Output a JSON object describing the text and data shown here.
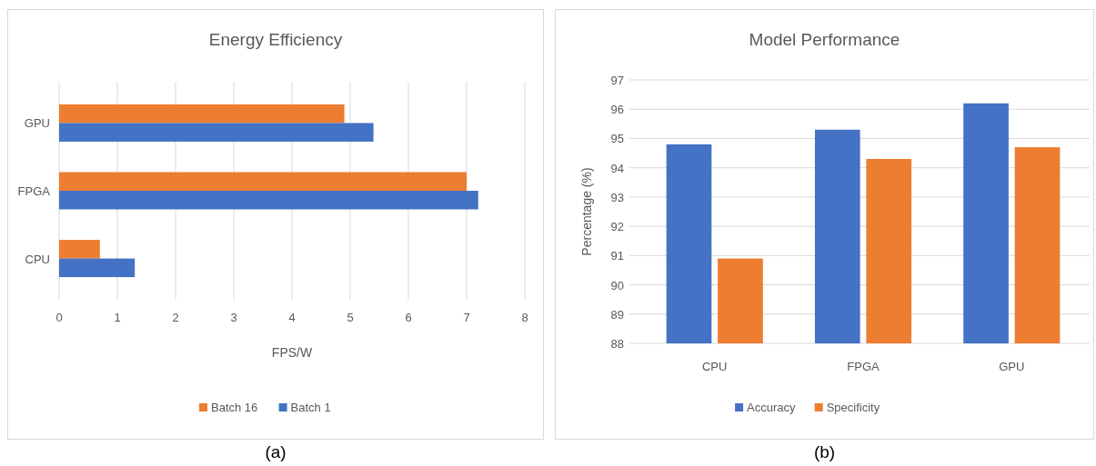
{
  "chart_data": [
    {
      "type": "bar",
      "orientation": "horizontal",
      "title": "Energy Efficiency",
      "xlabel": "FPS/W",
      "categories": [
        "GPU",
        "FPGA",
        "CPU"
      ],
      "series": [
        {
          "name": "Batch 16",
          "color": "#ed7d31",
          "values": [
            4.9,
            7.0,
            0.7
          ]
        },
        {
          "name": "Batch 1",
          "color": "#4472c4",
          "values": [
            5.4,
            7.2,
            1.3
          ]
        }
      ],
      "xlim": [
        0,
        8
      ],
      "xticks": [
        0,
        1,
        2,
        3,
        4,
        5,
        6,
        7,
        8
      ],
      "grid": "x",
      "legend": "bottom",
      "annotations": [
        "(a)"
      ]
    },
    {
      "type": "bar",
      "title": "Model Performance",
      "ylabel": "Percentage (%)",
      "categories": [
        "CPU",
        "FPGA",
        "GPU"
      ],
      "series": [
        {
          "name": "Accuracy",
          "color": "#4472c4",
          "values": [
            94.8,
            95.3,
            96.2
          ]
        },
        {
          "name": "Specificity",
          "color": "#ed7d31",
          "values": [
            90.9,
            94.3,
            94.7
          ]
        }
      ],
      "ylim": [
        88,
        97
      ],
      "yticks": [
        88,
        89,
        90,
        91,
        92,
        93,
        94,
        95,
        96,
        97
      ],
      "grid": "y",
      "legend": "bottom",
      "annotations": [
        "(b)"
      ]
    }
  ]
}
